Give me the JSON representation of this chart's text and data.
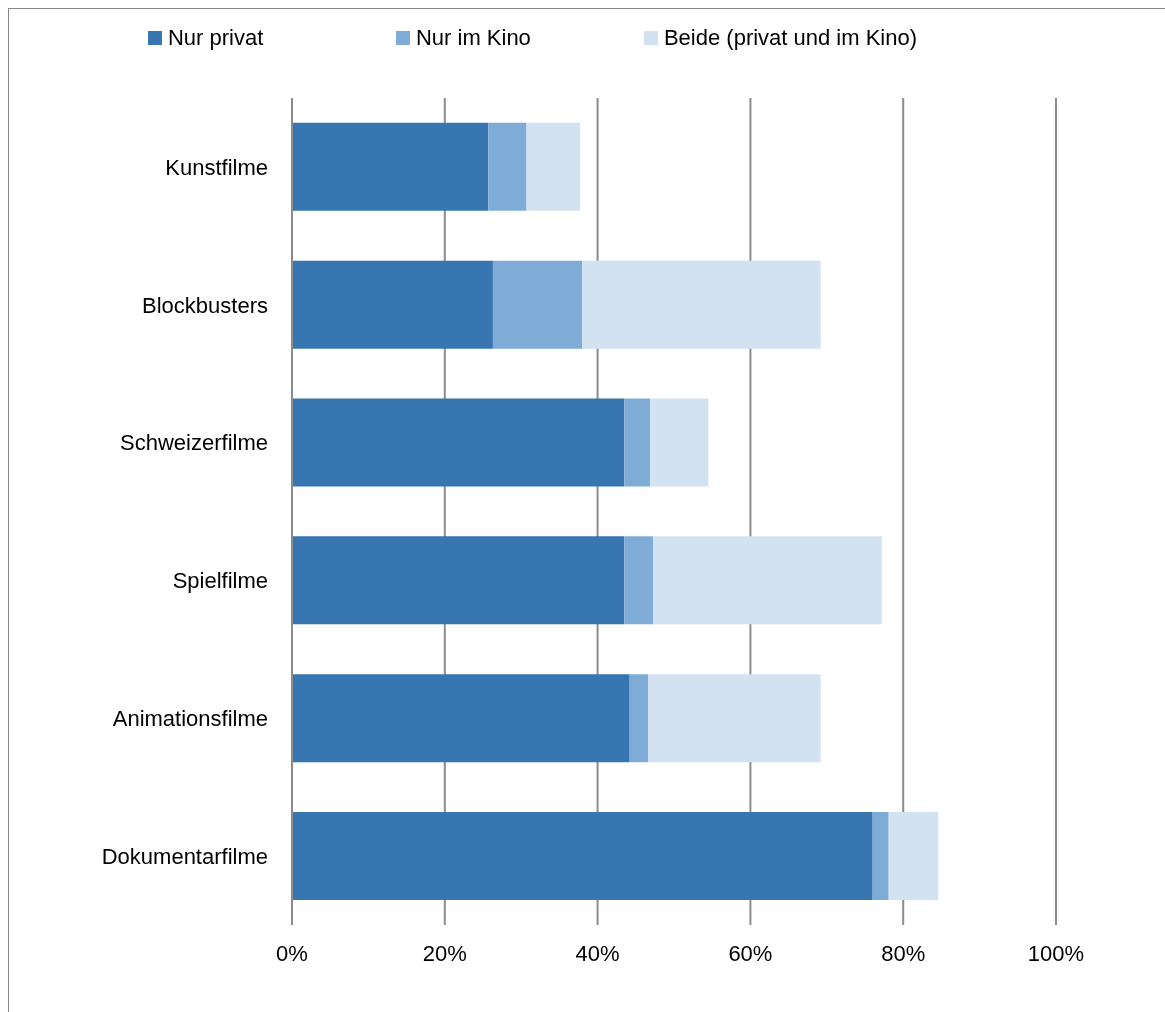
{
  "chart_data": {
    "type": "bar",
    "orientation": "horizontal",
    "stacked": true,
    "categories": [
      "Kunstfilme",
      "Blockbusters",
      "Schweizerfilme",
      "Spielfilme",
      "Animationsfilme",
      "Dokumentarfilme"
    ],
    "series": [
      {
        "name": "Nur privat",
        "color": "#3876b2",
        "values": [
          25.7,
          26.3,
          43.5,
          43.5,
          44.2,
          76.0
        ]
      },
      {
        "name": "Nur im Kino",
        "color": "#7facd6",
        "values": [
          5.0,
          11.7,
          3.4,
          3.8,
          2.4,
          2.1
        ]
      },
      {
        "name": "Beide (privat und im Kino)",
        "color": "#d3e2f1",
        "values": [
          7.0,
          31.2,
          7.6,
          29.9,
          22.6,
          6.5
        ]
      }
    ],
    "xlim": [
      0,
      100
    ],
    "xticks": [
      {
        "value": 0,
        "label": "0%"
      },
      {
        "value": 20,
        "label": "20%"
      },
      {
        "value": 40,
        "label": "40%"
      },
      {
        "value": 60,
        "label": "60%"
      },
      {
        "value": 80,
        "label": "80%"
      },
      {
        "value": 100,
        "label": "100%"
      }
    ],
    "grid": "x",
    "legend": "top"
  }
}
